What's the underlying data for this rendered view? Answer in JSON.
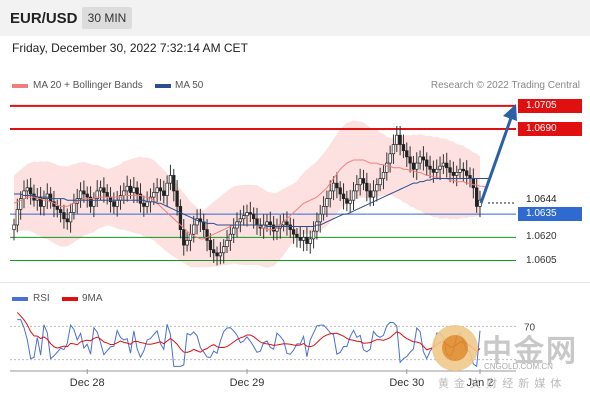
{
  "header": {
    "pair": "EUR/USD",
    "timeframe": "30 MIN",
    "datetime": "Friday, December 30, 2022 7:32:14 AM CET"
  },
  "legend": {
    "ma20": {
      "label": "MA 20 + Bollinger Bands",
      "color": "#f08080"
    },
    "ma50": {
      "label": "MA 50",
      "color": "#2b4f8e"
    },
    "credit": "Research © 2022 Trading Central"
  },
  "rsi_legend": {
    "rsi": "RSI",
    "ma9": "9MA"
  },
  "levels": [
    {
      "value": "1.0705",
      "kind": "resistance",
      "color": "#dd1111"
    },
    {
      "value": "1.0690",
      "kind": "resistance",
      "color": "#dd1111"
    },
    {
      "value": "1.0644",
      "kind": "last",
      "color": "#222222"
    },
    {
      "value": "1.0635",
      "kind": "pivot",
      "color": "#2f6ad1"
    },
    {
      "value": "1.0620",
      "kind": "support",
      "color": "#119922"
    },
    {
      "value": "1.0605",
      "kind": "support",
      "color": "#119922"
    }
  ],
  "watermark": {
    "brand": "中金网",
    "domain": "CNGOLD.COM.CN",
    "slogan": "黄 金 文 财 经 新 媒 体"
  },
  "chart_data": {
    "type": "candlestick",
    "x_tick_labels": [
      "Dec 28",
      "Dec 29",
      "Dec 30",
      "Jan 2"
    ],
    "ylim": [
      1.0595,
      1.0712
    ],
    "rsi_level_label": "70",
    "close": [
      1.0628,
      1.0638,
      1.0645,
      1.065,
      1.0652,
      1.0648,
      1.0644,
      1.0646,
      1.064,
      1.0645,
      1.0648,
      1.0643,
      1.064,
      1.0638,
      1.0636,
      1.0632,
      1.063,
      1.0636,
      1.0642,
      1.0645,
      1.065,
      1.0648,
      1.0646,
      1.064,
      1.0645,
      1.065,
      1.0652,
      1.0649,
      1.0646,
      1.0643,
      1.064,
      1.0644,
      1.0647,
      1.065,
      1.0653,
      1.0649,
      1.0652,
      1.0648,
      1.0642,
      1.064,
      1.0643,
      1.0646,
      1.0649,
      1.0652,
      1.065,
      1.0647,
      1.0655,
      1.066,
      1.065,
      1.064,
      1.0625,
      1.0615,
      1.0618,
      1.0622,
      1.0628,
      1.0632,
      1.063,
      1.0625,
      1.0618,
      1.0612,
      1.061,
      1.0608,
      1.061,
      1.0614,
      1.0618,
      1.0622,
      1.0626,
      1.063,
      1.0632,
      1.0634,
      1.0636,
      1.0635,
      1.0632,
      1.0628,
      1.0626,
      1.0628,
      1.063,
      1.0628,
      1.0624,
      1.0626,
      1.0628,
      1.063,
      1.0628,
      1.0625,
      1.0622,
      1.062,
      1.0618,
      1.062,
      1.0616,
      1.0619,
      1.0624,
      1.063,
      1.0635,
      1.064,
      1.0645,
      1.065,
      1.0655,
      1.0652,
      1.0648,
      1.0645,
      1.0642,
      1.0644,
      1.065,
      1.0654,
      1.0658,
      1.0655,
      1.065,
      1.0646,
      1.065,
      1.0654,
      1.0658,
      1.0662,
      1.0668,
      1.0674,
      1.068,
      1.0686,
      1.068,
      1.0676,
      1.0672,
      1.0668,
      1.0664,
      1.0668,
      1.0672,
      1.067,
      1.0666,
      1.0664,
      1.0662,
      1.0664,
      1.0666,
      1.0668,
      1.0665,
      1.0662,
      1.066,
      1.0662,
      1.0664,
      1.0663,
      1.066,
      1.0658,
      1.0652,
      1.064,
      1.0644
    ],
    "ma20": [
      1.0642,
      1.0643,
      1.0644,
      1.0645,
      1.0646,
      1.0646,
      1.0646,
      1.0645,
      1.0645,
      1.0644,
      1.0644,
      1.0643,
      1.0642,
      1.0641,
      1.064,
      1.064,
      1.064,
      1.0641,
      1.0642,
      1.0643,
      1.0644,
      1.0645,
      1.0645,
      1.0645,
      1.0645,
      1.0646,
      1.0646,
      1.0646,
      1.0646,
      1.0646,
      1.0646,
      1.0646,
      1.0646,
      1.0647,
      1.0647,
      1.0647,
      1.0647,
      1.0647,
      1.0647,
      1.0646,
      1.0646,
      1.0645,
      1.0644,
      1.0642,
      1.064,
      1.0638,
      1.0636,
      1.0634,
      1.0632,
      1.063,
      1.0628,
      1.0626,
      1.0624,
      1.0622,
      1.0621,
      1.062,
      1.0619,
      1.0619,
      1.062,
      1.0621,
      1.0622,
      1.0623,
      1.0624,
      1.0625,
      1.0626,
      1.0627,
      1.0628,
      1.0628,
      1.0628,
      1.0628,
      1.0628,
      1.0628,
      1.0628,
      1.0628,
      1.0627,
      1.0626,
      1.0625,
      1.0625,
      1.0625,
      1.0626,
      1.0628,
      1.063,
      1.0632,
      1.0634,
      1.0636,
      1.0638,
      1.064,
      1.0642,
      1.0643,
      1.0644,
      1.0645,
      1.0646,
      1.0648,
      1.065,
      1.0652,
      1.0655,
      1.0658,
      1.0661,
      1.0664,
      1.0666,
      1.0668,
      1.0669,
      1.067,
      1.067,
      1.067,
      1.067,
      1.0669,
      1.0668,
      1.0668,
      1.0668,
      1.0667,
      1.0667,
      1.0666,
      1.0666,
      1.0665,
      1.0665,
      1.0665,
      1.0664,
      1.0664,
      1.0663,
      1.0663,
      1.0662,
      1.0662,
      1.0661,
      1.066,
      1.066,
      1.0659,
      1.0659,
      1.0658,
      1.0658,
      1.0658,
      1.0657,
      1.0657,
      1.0656,
      1.0656,
      1.0656,
      1.0655,
      1.0655,
      1.0654,
      1.0654,
      1.0653,
      1.0653,
      1.0652
    ],
    "ma50": [
      1.0648,
      1.0648,
      1.0648,
      1.0647,
      1.0647,
      1.0647,
      1.0647,
      1.0646,
      1.0646,
      1.0646,
      1.0646,
      1.0645,
      1.0645,
      1.0645,
      1.0645,
      1.0645,
      1.0644,
      1.0644,
      1.0644,
      1.0644,
      1.0644,
      1.0644,
      1.0644,
      1.0644,
      1.0644,
      1.0644,
      1.0644,
      1.0644,
      1.0644,
      1.0644,
      1.0644,
      1.0644,
      1.0644,
      1.0644,
      1.0644,
      1.0644,
      1.0644,
      1.0644,
      1.0644,
      1.0644,
      1.0643,
      1.0643,
      1.0643,
      1.0642,
      1.0642,
      1.0641,
      1.064,
      1.0639,
      1.0638,
      1.0637,
      1.0636,
      1.0635,
      1.0634,
      1.0633,
      1.0632,
      1.0631,
      1.063,
      1.063,
      1.0629,
      1.0629,
      1.0629,
      1.0628,
      1.0628,
      1.0628,
      1.0628,
      1.0628,
      1.0628,
      1.0628,
      1.0628,
      1.0628,
      1.0628,
      1.0628,
      1.0628,
      1.0628,
      1.0628,
      1.0628,
      1.0627,
      1.0627,
      1.0627,
      1.0627,
      1.0627,
      1.0627,
      1.0627,
      1.0627,
      1.0627,
      1.0627,
      1.0627,
      1.0627,
      1.0627,
      1.0627,
      1.0627,
      1.0628,
      1.0628,
      1.0629,
      1.063,
      1.0631,
      1.0632,
      1.0633,
      1.0634,
      1.0635,
      1.0635,
      1.0636,
      1.0637,
      1.0638,
      1.0639,
      1.064,
      1.0641,
      1.0642,
      1.0643,
      1.0644,
      1.0645,
      1.0646,
      1.0647,
      1.0648,
      1.0649,
      1.065,
      1.0651,
      1.0652,
      1.0653,
      1.0654,
      1.0655,
      1.0655,
      1.0656,
      1.0656,
      1.0657,
      1.0657,
      1.0658,
      1.0658,
      1.0658,
      1.0658,
      1.0658,
      1.0658,
      1.0658,
      1.0658,
      1.0658,
      1.0658,
      1.0658,
      1.0658,
      1.0658,
      1.0658,
      1.0658,
      1.0658,
      1.0658,
      1.0658
    ]
  }
}
